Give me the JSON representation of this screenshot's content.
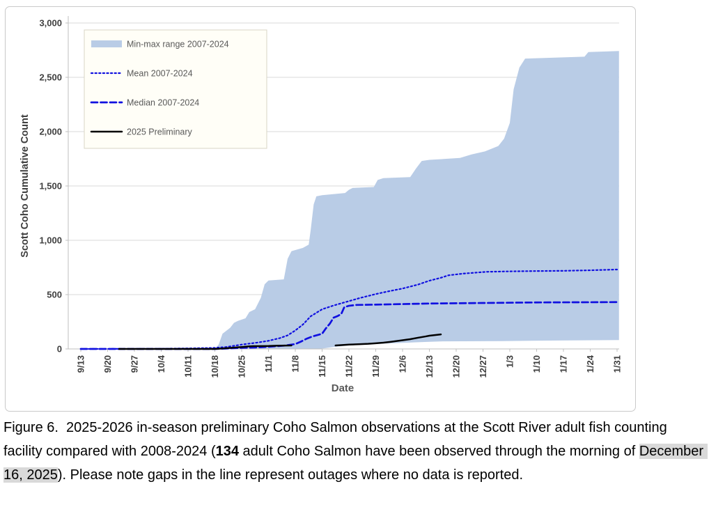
{
  "chart_data": {
    "type": "area",
    "title": "",
    "xlabel": "Date",
    "ylabel": "Scott Coho Cumulative Count",
    "x_tick_labels": [
      "9/13",
      "9/20",
      "9/27",
      "10/4",
      "10/11",
      "10/18",
      "10/25",
      "11/1",
      "11/8",
      "11/15",
      "11/22",
      "11/29",
      "12/6",
      "12/13",
      "12/20",
      "12/27",
      "1/3",
      "1/10",
      "1/17",
      "1/24",
      "1/31"
    ],
    "x_tick_days": [
      0,
      7,
      14,
      21,
      28,
      35,
      42,
      49,
      56,
      63,
      70,
      77,
      84,
      91,
      98,
      105,
      112,
      119,
      126,
      133,
      140
    ],
    "y_tick_labels": [
      "0",
      "500",
      "1,000",
      "1,500",
      "2,000",
      "2,500",
      "3,000"
    ],
    "y_tick_values": [
      0,
      500,
      1000,
      1500,
      2000,
      2500,
      3000
    ],
    "ylim": [
      0,
      3000
    ],
    "xlim_days": [
      0,
      140.5
    ],
    "grid": "horizontal",
    "legend_position": "upper-left-inside",
    "colors": {
      "band_fill": "#b9cce6",
      "blue_line": "#1010e0",
      "black_line": "#000000",
      "gridline": "#d9d9d9",
      "axis_line": "#bfbfbf",
      "tick_text": "#3f3f3f",
      "axis_title_text": "#595959",
      "legend_text": "#595959",
      "legend_border": "#d8d5c5",
      "legend_bg": "#fffef7",
      "caption_highlight": "#d9d9d9"
    },
    "series": [
      {
        "name": "Min-max range 2007-2024",
        "role": "band-upper",
        "style": "band",
        "points": [
          [
            0,
            0
          ],
          [
            7,
            0
          ],
          [
            14,
            0
          ],
          [
            21,
            0
          ],
          [
            28,
            0
          ],
          [
            35,
            0
          ],
          [
            36,
            40
          ],
          [
            37,
            140
          ],
          [
            39,
            195
          ],
          [
            40,
            240
          ],
          [
            41,
            258
          ],
          [
            42,
            270
          ],
          [
            43,
            282
          ],
          [
            44,
            340
          ],
          [
            45.5,
            365
          ],
          [
            47,
            470
          ],
          [
            48,
            595
          ],
          [
            49,
            630
          ],
          [
            53,
            640
          ],
          [
            54,
            830
          ],
          [
            55,
            900
          ],
          [
            58,
            930
          ],
          [
            59.5,
            960
          ],
          [
            60,
            1090
          ],
          [
            60.8,
            1330
          ],
          [
            61.5,
            1405
          ],
          [
            63,
            1415
          ],
          [
            69,
            1435
          ],
          [
            70,
            1465
          ],
          [
            71,
            1482
          ],
          [
            76.5,
            1490
          ],
          [
            77.5,
            1555
          ],
          [
            79,
            1572
          ],
          [
            86,
            1582
          ],
          [
            87.5,
            1660
          ],
          [
            89,
            1730
          ],
          [
            91,
            1740
          ],
          [
            99,
            1758
          ],
          [
            102,
            1790
          ],
          [
            105.5,
            1818
          ],
          [
            109,
            1868
          ],
          [
            110.5,
            1935
          ],
          [
            112,
            2080
          ],
          [
            113,
            2390
          ],
          [
            114.5,
            2590
          ],
          [
            116,
            2672
          ],
          [
            131.5,
            2690
          ],
          [
            132.5,
            2732
          ],
          [
            140.5,
            2742
          ]
        ]
      },
      {
        "name": "Min-max range 2007-2024 (lower bound)",
        "role": "band-lower",
        "style": "band",
        "points": [
          [
            0,
            0
          ],
          [
            62,
            0
          ],
          [
            64,
            8
          ],
          [
            66,
            18
          ],
          [
            70,
            32
          ],
          [
            77,
            46
          ],
          [
            84,
            56
          ],
          [
            88,
            62
          ],
          [
            91,
            66
          ],
          [
            95,
            70
          ],
          [
            110,
            72
          ],
          [
            125,
            78
          ],
          [
            140.5,
            82
          ]
        ]
      },
      {
        "name": "Mean 2007-2024",
        "role": "line",
        "style": "dotted",
        "points": [
          [
            0,
            0
          ],
          [
            14,
            1
          ],
          [
            21,
            2
          ],
          [
            28,
            5
          ],
          [
            35,
            10
          ],
          [
            38,
            18
          ],
          [
            42,
            40
          ],
          [
            46,
            58
          ],
          [
            49,
            75
          ],
          [
            52,
            100
          ],
          [
            54,
            125
          ],
          [
            56,
            170
          ],
          [
            58,
            225
          ],
          [
            60,
            300
          ],
          [
            63,
            365
          ],
          [
            66,
            400
          ],
          [
            70,
            440
          ],
          [
            73,
            470
          ],
          [
            77,
            505
          ],
          [
            80,
            528
          ],
          [
            84,
            556
          ],
          [
            88,
            592
          ],
          [
            91,
            628
          ],
          [
            94,
            655
          ],
          [
            96,
            678
          ],
          [
            100,
            694
          ],
          [
            106,
            710
          ],
          [
            112,
            714
          ],
          [
            119,
            717
          ],
          [
            126,
            719
          ],
          [
            133,
            724
          ],
          [
            140,
            731
          ]
        ]
      },
      {
        "name": "Median 2007-2024",
        "role": "line",
        "style": "dashed",
        "points": [
          [
            0,
            0
          ],
          [
            35,
            0
          ],
          [
            38,
            4
          ],
          [
            42,
            10
          ],
          [
            46,
            14
          ],
          [
            49,
            20
          ],
          [
            53,
            30
          ],
          [
            56,
            45
          ],
          [
            57.5,
            68
          ],
          [
            59,
            95
          ],
          [
            60.5,
            115
          ],
          [
            63,
            140
          ],
          [
            64,
            190
          ],
          [
            65,
            232
          ],
          [
            66,
            288
          ],
          [
            67,
            302
          ],
          [
            68,
            322
          ],
          [
            68.8,
            385
          ],
          [
            70,
            397
          ],
          [
            72,
            405
          ],
          [
            77,
            408
          ],
          [
            84,
            413
          ],
          [
            91,
            418
          ],
          [
            105,
            423
          ],
          [
            119,
            428
          ],
          [
            133,
            430
          ],
          [
            140,
            431
          ]
        ]
      },
      {
        "name": "2025 Preliminary",
        "role": "line",
        "style": "solid",
        "note": "gap in line = outage, no data reported",
        "segments": [
          [
            [
              10,
              0
            ],
            [
              35,
              0
            ],
            [
              36.5,
              3
            ],
            [
              38.5,
              8
            ],
            [
              41,
              15
            ],
            [
              42,
              18
            ],
            [
              44,
              24
            ],
            [
              45,
              26
            ],
            [
              49,
              27
            ],
            [
              51,
              30
            ],
            [
              55,
              32
            ]
          ],
          [
            [
              66.5,
              32
            ],
            [
              68,
              35
            ],
            [
              70,
              40
            ],
            [
              73,
              44
            ],
            [
              75,
              47
            ],
            [
              77,
              52
            ],
            [
              79,
              58
            ],
            [
              81,
              66
            ],
            [
              84,
              80
            ],
            [
              86,
              90
            ],
            [
              88,
              103
            ],
            [
              90,
              115
            ],
            [
              91,
              122
            ],
            [
              93,
              130
            ],
            [
              94,
              134
            ]
          ]
        ]
      }
    ],
    "legend": [
      {
        "style": "band",
        "label": "Min-max range 2007-2024"
      },
      {
        "style": "dotted",
        "label": "Mean 2007-2024"
      },
      {
        "style": "dashed",
        "label": "Median 2007-2024"
      },
      {
        "style": "solid",
        "label": "2025 Preliminary"
      }
    ]
  },
  "caption": {
    "prefix": "Figure 6.  2025-2026 in-season preliminary Coho Salmon observations at the Scott River adult fish counting facility compared with 2008-2024 (",
    "bold_count": "134",
    "middle": " adult Coho Salmon have been observed through the morning of ",
    "highlighted_date": "December 16, 2025",
    "suffix": "). Please note gaps in the line represent outages where no data is reported."
  }
}
